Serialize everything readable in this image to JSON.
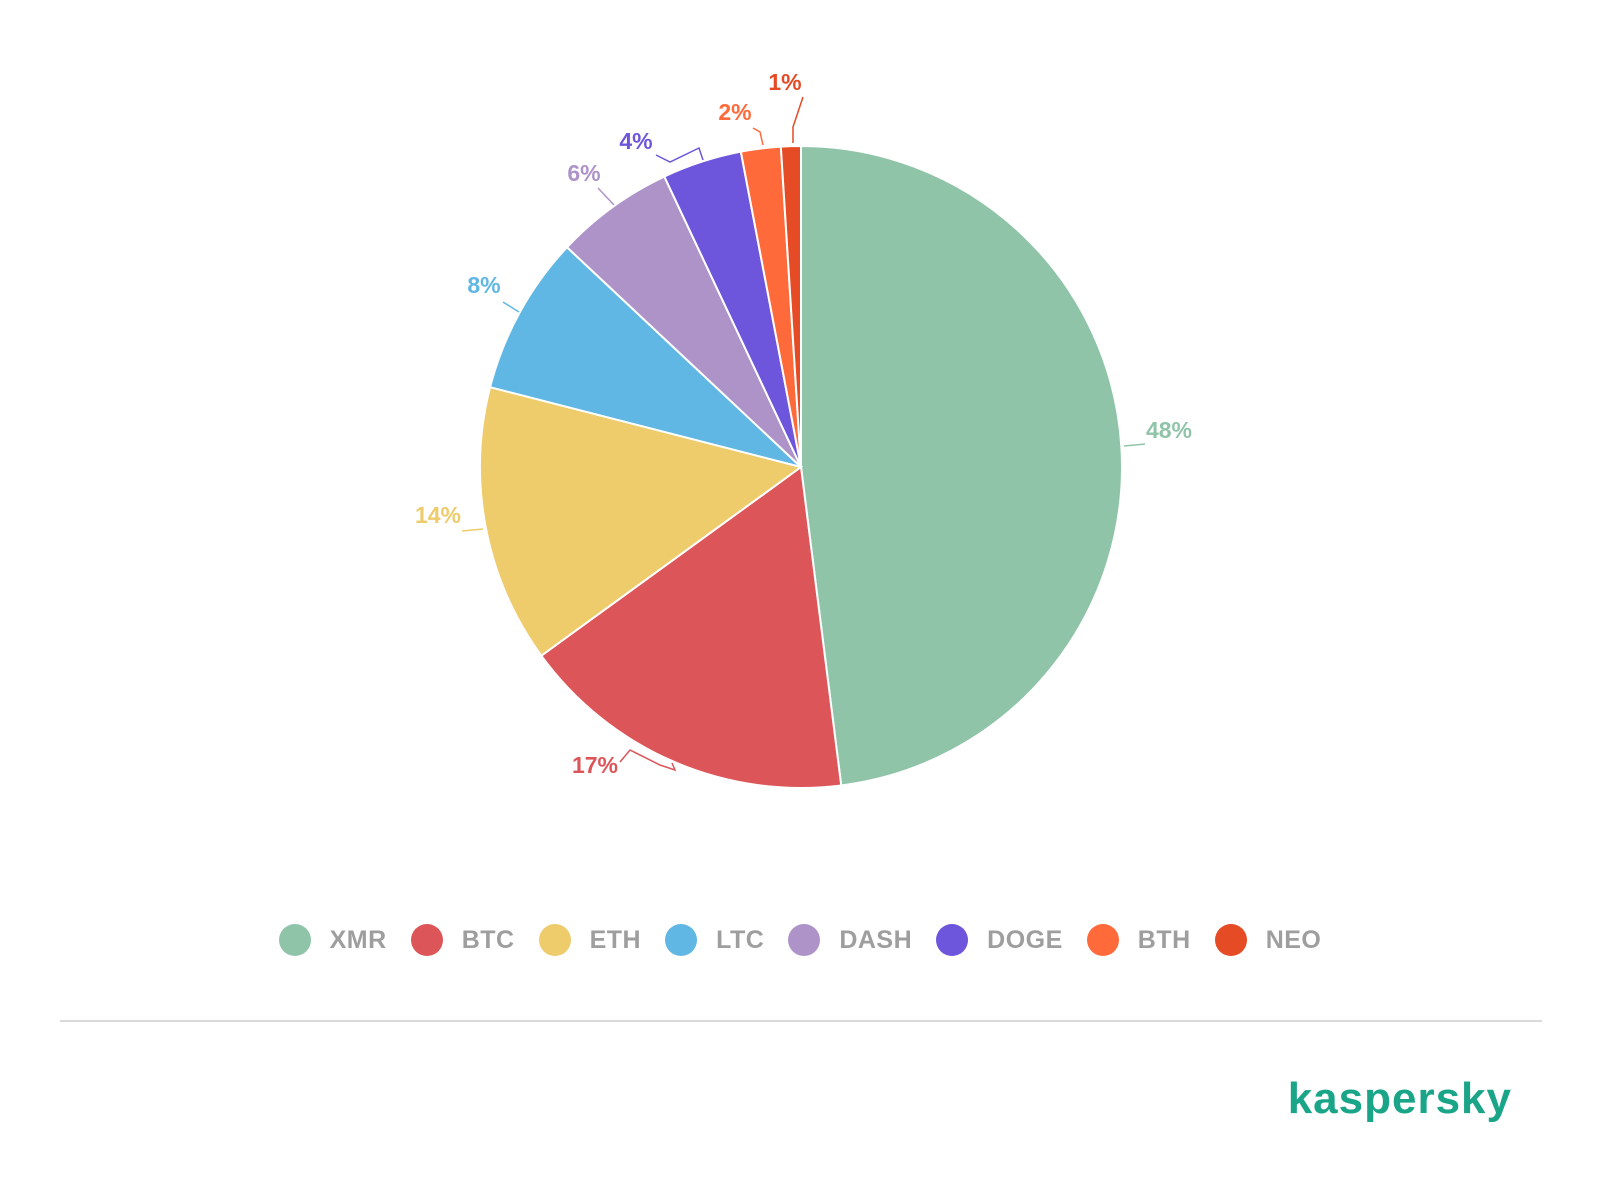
{
  "chart_data": {
    "type": "pie",
    "slices": [
      {
        "label": "XMR",
        "value": 48,
        "value_label": "48%",
        "color": "#90c4a8"
      },
      {
        "label": "BTC",
        "value": 17,
        "value_label": "17%",
        "color": "#dc5558"
      },
      {
        "label": "ETH",
        "value": 14,
        "value_label": "14%",
        "color": "#eecb6b"
      },
      {
        "label": "LTC",
        "value": 8,
        "value_label": "8%",
        "color": "#61b7e4"
      },
      {
        "label": "DASH",
        "value": 6,
        "value_label": "6%",
        "color": "#ae93c8"
      },
      {
        "label": "DOGE",
        "value": 4,
        "value_label": "4%",
        "color": "#6d56dc"
      },
      {
        "label": "BTH",
        "value": 2,
        "value_label": "2%",
        "color": "#ff6a3b"
      },
      {
        "label": "NEO",
        "value": 1,
        "value_label": "1%",
        "color": "#e54b25"
      }
    ],
    "legend_position": "bottom"
  },
  "brand": {
    "name": "kaspersky",
    "color": "#1aa589"
  },
  "legend_text_color": "#9e9e9e"
}
